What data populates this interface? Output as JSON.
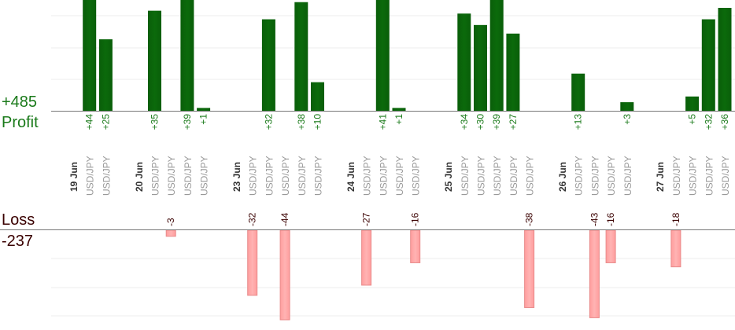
{
  "summary": {
    "profit_total": "+485",
    "profit_label": "Profit",
    "loss_label": "Loss",
    "loss_total": "-237"
  },
  "colors": {
    "profit_bar": "#0b6a0b",
    "profit_text": "#1a7a1a",
    "loss_bar": "#ffb3b3",
    "loss_border": "#e88a8a",
    "loss_text": "#3a0000",
    "grid": "#eeeeee",
    "axis": "#777777",
    "pair_text": "#999999",
    "date_text": "#333333"
  },
  "chart_data": {
    "type": "bar",
    "profit_ylim": [
      0,
      36
    ],
    "loss_ylim": [
      -44,
      0
    ],
    "columns": [
      {
        "label": "19 Jun",
        "kind": "date"
      },
      {
        "label": "USD/JPY",
        "kind": "trade",
        "profit": 44,
        "profit_label": "+44"
      },
      {
        "label": "USD/JPY",
        "kind": "trade",
        "profit": 25,
        "profit_label": "+25"
      },
      {
        "label": "",
        "kind": "gap"
      },
      {
        "label": "20 Jun",
        "kind": "date"
      },
      {
        "label": "USD/JPY",
        "kind": "trade",
        "profit": 35,
        "profit_label": "+35"
      },
      {
        "label": "USD/JPY",
        "kind": "trade",
        "loss": -3,
        "loss_label": "-3"
      },
      {
        "label": "USD/JPY",
        "kind": "trade",
        "profit": 39,
        "profit_label": "+39"
      },
      {
        "label": "USD/JPY",
        "kind": "trade",
        "profit": 1,
        "profit_label": "+1"
      },
      {
        "label": "",
        "kind": "gap"
      },
      {
        "label": "23 Jun",
        "kind": "date"
      },
      {
        "label": "USD/JPY",
        "kind": "trade",
        "loss": -32,
        "loss_label": "-32"
      },
      {
        "label": "USD/JPY",
        "kind": "trade",
        "profit": 32,
        "profit_label": "+32"
      },
      {
        "label": "USD/JPY",
        "kind": "trade",
        "loss": -44,
        "loss_label": "-44"
      },
      {
        "label": "USD/JPY",
        "kind": "trade",
        "profit": 38,
        "profit_label": "+38"
      },
      {
        "label": "USD/JPY",
        "kind": "trade",
        "profit": 10,
        "profit_label": "+10"
      },
      {
        "label": "",
        "kind": "gap"
      },
      {
        "label": "24 Jun",
        "kind": "date"
      },
      {
        "label": "USD/JPY",
        "kind": "trade",
        "loss": -27,
        "loss_label": "-27"
      },
      {
        "label": "USD/JPY",
        "kind": "trade",
        "profit": 41,
        "profit_label": "+41"
      },
      {
        "label": "USD/JPY",
        "kind": "trade",
        "profit": 1,
        "profit_label": "+1"
      },
      {
        "label": "USD/JPY",
        "kind": "trade",
        "loss": -16,
        "loss_label": "-16"
      },
      {
        "label": "",
        "kind": "gap"
      },
      {
        "label": "25 Jun",
        "kind": "date"
      },
      {
        "label": "USD/JPY",
        "kind": "trade",
        "profit": 34,
        "profit_label": "+34"
      },
      {
        "label": "USD/JPY",
        "kind": "trade",
        "profit": 30,
        "profit_label": "+30"
      },
      {
        "label": "USD/JPY",
        "kind": "trade",
        "profit": 39,
        "profit_label": "+39"
      },
      {
        "label": "USD/JPY",
        "kind": "trade",
        "profit": 27,
        "profit_label": "+27"
      },
      {
        "label": "USD/JPY",
        "kind": "trade",
        "loss": -38,
        "loss_label": "-38"
      },
      {
        "label": "",
        "kind": "gap"
      },
      {
        "label": "26 Jun",
        "kind": "date"
      },
      {
        "label": "USD/JPY",
        "kind": "trade",
        "profit": 13,
        "profit_label": "+13"
      },
      {
        "label": "USD/JPY",
        "kind": "trade",
        "loss": -43,
        "loss_label": "-43"
      },
      {
        "label": "USD/JPY",
        "kind": "trade",
        "loss": -16,
        "loss_label": "-16"
      },
      {
        "label": "USD/JPY",
        "kind": "trade",
        "profit": 3,
        "profit_label": "+3"
      },
      {
        "label": "",
        "kind": "gap"
      },
      {
        "label": "27 Jun",
        "kind": "date"
      },
      {
        "label": "USD/JPY",
        "kind": "trade",
        "loss": -18,
        "loss_label": "-18"
      },
      {
        "label": "USD/JPY",
        "kind": "trade",
        "profit": 5,
        "profit_label": "+5"
      },
      {
        "label": "USD/JPY",
        "kind": "trade",
        "profit": 32,
        "profit_label": "+32"
      },
      {
        "label": "USD/JPY",
        "kind": "trade",
        "profit": 36,
        "profit_label": "+36"
      }
    ]
  }
}
